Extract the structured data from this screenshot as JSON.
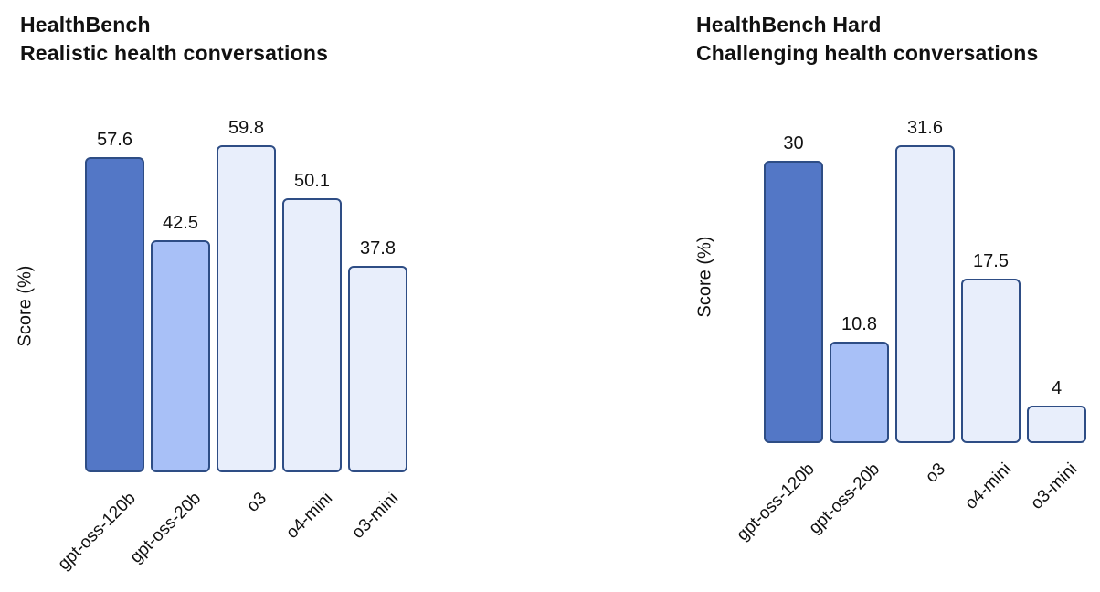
{
  "page": {
    "background": "#ffffff",
    "text_color": "#111111"
  },
  "chart_data": [
    {
      "type": "bar",
      "title": "HealthBench",
      "subtitle": "Realistic health conversations",
      "ylabel": "Score (%)",
      "xlabel": "",
      "categories": [
        "gpt-oss-120b",
        "gpt-oss-20b",
        "o3",
        "o4-mini",
        "o3-mini"
      ],
      "values": [
        57.6,
        42.5,
        59.8,
        50.1,
        37.8
      ],
      "value_labels": [
        "57.6",
        "42.5",
        "59.8",
        "50.1",
        "37.8"
      ],
      "ylim": [
        0,
        60
      ],
      "grid": false,
      "legend": "none",
      "bar_colors": [
        "#5377c6",
        "#a8c0f7",
        "#e8eefb",
        "#e8eefb",
        "#e8eefb"
      ],
      "bar_border_color": "#2e4d85"
    },
    {
      "type": "bar",
      "title": "HealthBench Hard",
      "subtitle": "Challenging health conversations",
      "ylabel": "Score (%)",
      "xlabel": "",
      "categories": [
        "gpt-oss-120b",
        "gpt-oss-20b",
        "o3",
        "o4-mini",
        "o3-mini"
      ],
      "values": [
        30,
        10.8,
        31.6,
        17.5,
        4
      ],
      "value_labels": [
        "30",
        "10.8",
        "31.6",
        "17.5",
        "4"
      ],
      "ylim": [
        0,
        32
      ],
      "grid": false,
      "legend": "none",
      "bar_colors": [
        "#5377c6",
        "#a8c0f7",
        "#e8eefb",
        "#e8eefb",
        "#e8eefb"
      ],
      "bar_border_color": "#2e4d85"
    }
  ]
}
